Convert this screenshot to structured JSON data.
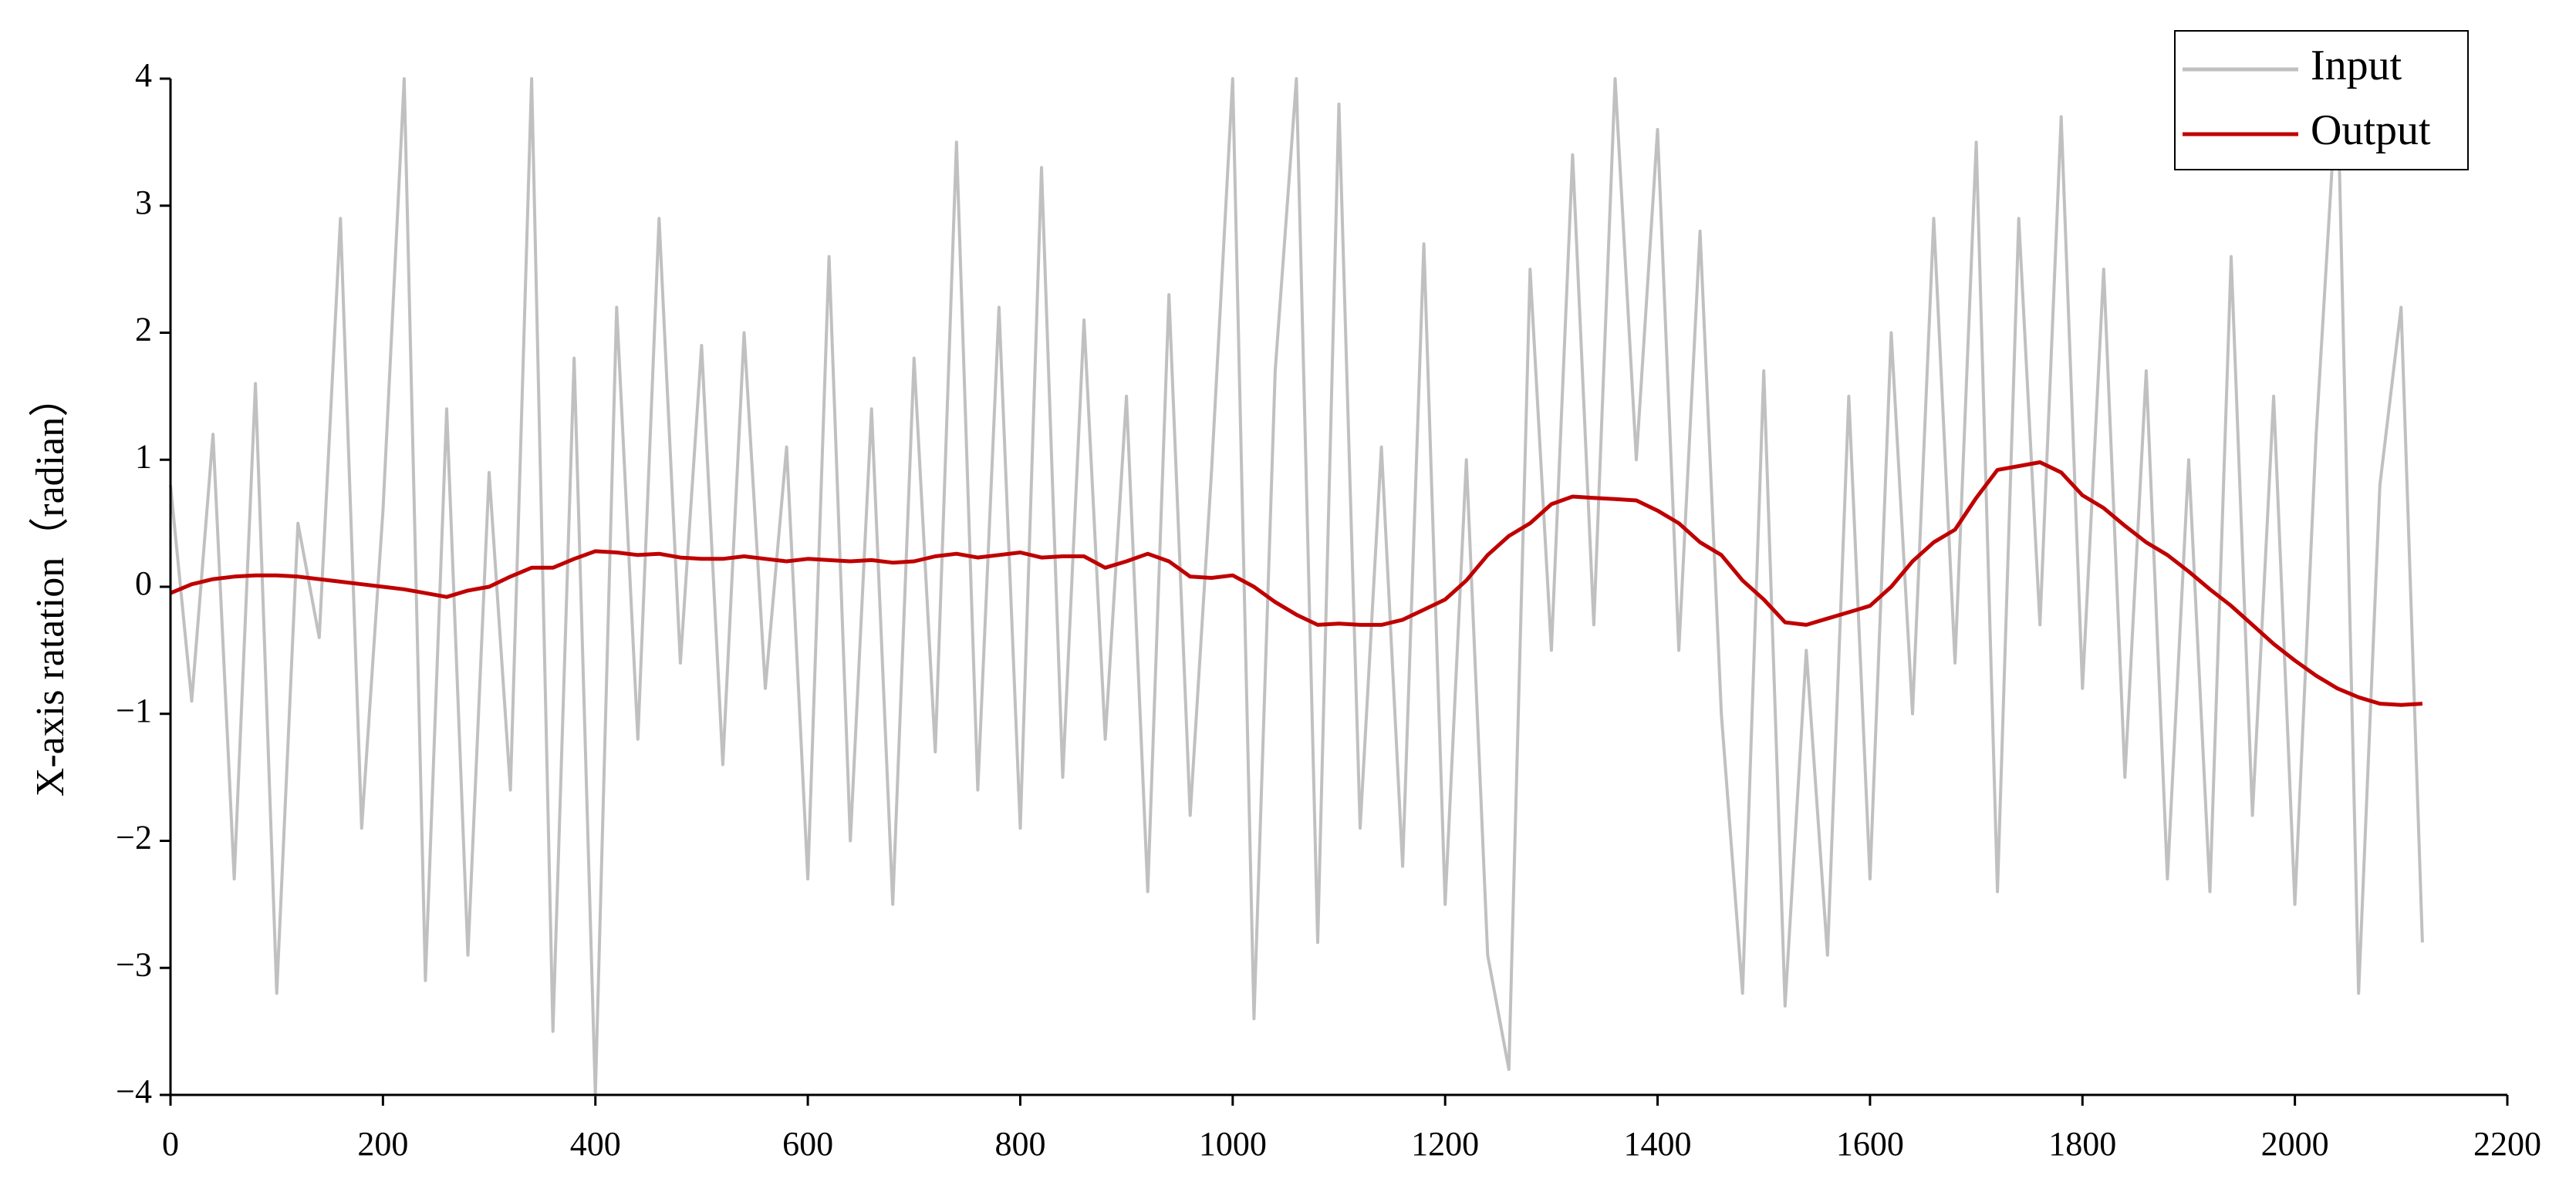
{
  "chart_data": {
    "type": "line",
    "y_label": "X-axis ratation（radian）",
    "x": [
      0,
      20,
      40,
      60,
      80,
      100,
      120,
      140,
      160,
      180,
      200,
      220,
      240,
      260,
      280,
      300,
      320,
      340,
      360,
      380,
      400,
      420,
      440,
      460,
      480,
      500,
      520,
      540,
      560,
      580,
      600,
      620,
      640,
      660,
      680,
      700,
      720,
      740,
      760,
      780,
      800,
      820,
      840,
      860,
      880,
      900,
      920,
      940,
      960,
      980,
      1000,
      1020,
      1040,
      1060,
      1080,
      1100,
      1120,
      1140,
      1160,
      1180,
      1200,
      1220,
      1240,
      1260,
      1280,
      1300,
      1320,
      1340,
      1360,
      1380,
      1400,
      1420,
      1440,
      1460,
      1480,
      1500,
      1520,
      1540,
      1560,
      1580,
      1600,
      1620,
      1640,
      1660,
      1680,
      1700,
      1720,
      1740,
      1760,
      1780,
      1800,
      1820,
      1840,
      1860,
      1880,
      1900,
      1920,
      1940,
      1960,
      1980,
      2000,
      2020,
      2040,
      2060,
      2080,
      2100,
      2120
    ],
    "series": [
      {
        "name": "Input",
        "color": "#c0c0c0",
        "values": [
          0.8,
          -0.9,
          1.2,
          -2.3,
          1.6,
          -3.2,
          0.5,
          -0.4,
          2.9,
          -1.9,
          0.6,
          4.0,
          -3.1,
          1.4,
          -2.9,
          0.9,
          -1.6,
          4.0,
          -3.5,
          1.8,
          -4.0,
          2.2,
          -1.2,
          2.9,
          -0.6,
          1.9,
          -1.4,
          2.0,
          -0.8,
          1.1,
          -2.3,
          2.6,
          -2.0,
          1.4,
          -2.5,
          1.8,
          -1.3,
          3.5,
          -1.6,
          2.2,
          -1.9,
          3.3,
          -1.5,
          2.1,
          -1.2,
          1.5,
          -2.4,
          2.3,
          -1.8,
          0.9,
          4.0,
          -3.4,
          1.7,
          4.0,
          -2.8,
          3.8,
          -1.9,
          1.1,
          -2.2,
          2.7,
          -2.5,
          1.0,
          -2.9,
          -3.8,
          2.5,
          -0.5,
          3.4,
          -0.3,
          4.0,
          1.0,
          3.6,
          -0.5,
          2.8,
          -1.0,
          -3.2,
          1.7,
          -3.3,
          -0.5,
          -2.9,
          1.5,
          -2.3,
          2.0,
          -1.0,
          2.9,
          -0.6,
          3.5,
          -2.4,
          2.9,
          -0.3,
          3.7,
          -0.8,
          2.5,
          -1.5,
          1.7,
          -2.3,
          1.0,
          -2.4,
          2.6,
          -1.8,
          1.5,
          -2.5,
          1.2,
          4.0,
          -3.2,
          0.8,
          2.2,
          -2.8
        ]
      },
      {
        "name": "Output",
        "color": "#c00000",
        "values": [
          -0.05,
          0.02,
          0.06,
          0.08,
          0.09,
          0.09,
          0.08,
          0.06,
          0.04,
          0.02,
          0,
          -0.02,
          -0.05,
          -0.08,
          -0.03,
          0,
          0.08,
          0.15,
          0.15,
          0.22,
          0.28,
          0.27,
          0.25,
          0.26,
          0.23,
          0.22,
          0.22,
          0.24,
          0.22,
          0.2,
          0.22,
          0.21,
          0.2,
          0.21,
          0.19,
          0.2,
          0.24,
          0.26,
          0.23,
          0.25,
          0.27,
          0.23,
          0.24,
          0.24,
          0.15,
          0.2,
          0.26,
          0.2,
          0.08,
          0.07,
          0.09,
          0.0,
          -0.12,
          -0.22,
          -0.3,
          -0.29,
          -0.3,
          -0.3,
          -0.26,
          -0.18,
          -0.1,
          0.05,
          0.25,
          0.4,
          0.5,
          0.65,
          0.71,
          0.7,
          0.69,
          0.68,
          0.6,
          0.5,
          0.35,
          0.25,
          0.05,
          -0.1,
          -0.28,
          -0.3,
          -0.25,
          -0.2,
          -0.15,
          0.0,
          0.2,
          0.35,
          0.45,
          0.7,
          0.92,
          0.95,
          0.98,
          0.9,
          0.72,
          0.62,
          0.48,
          0.35,
          0.25,
          0.12,
          -0.02,
          -0.15,
          -0.3,
          -0.45,
          -0.58,
          -0.7,
          -0.8,
          -0.87,
          -0.92,
          -0.93,
          -0.92
        ]
      }
    ],
    "xlim": [
      0,
      2200
    ],
    "xticks": [
      0,
      200,
      400,
      600,
      800,
      1000,
      1200,
      1400,
      1600,
      1800,
      2000,
      2200
    ],
    "ylim": [
      -4,
      4
    ],
    "yticks": [
      {
        "value": -4,
        "label": "−4"
      },
      {
        "value": -3,
        "label": "−3"
      },
      {
        "value": -2,
        "label": "−2"
      },
      {
        "value": -1,
        "label": "−1"
      },
      0,
      1,
      2,
      3,
      4
    ],
    "grid": false,
    "legend": "upper right"
  }
}
